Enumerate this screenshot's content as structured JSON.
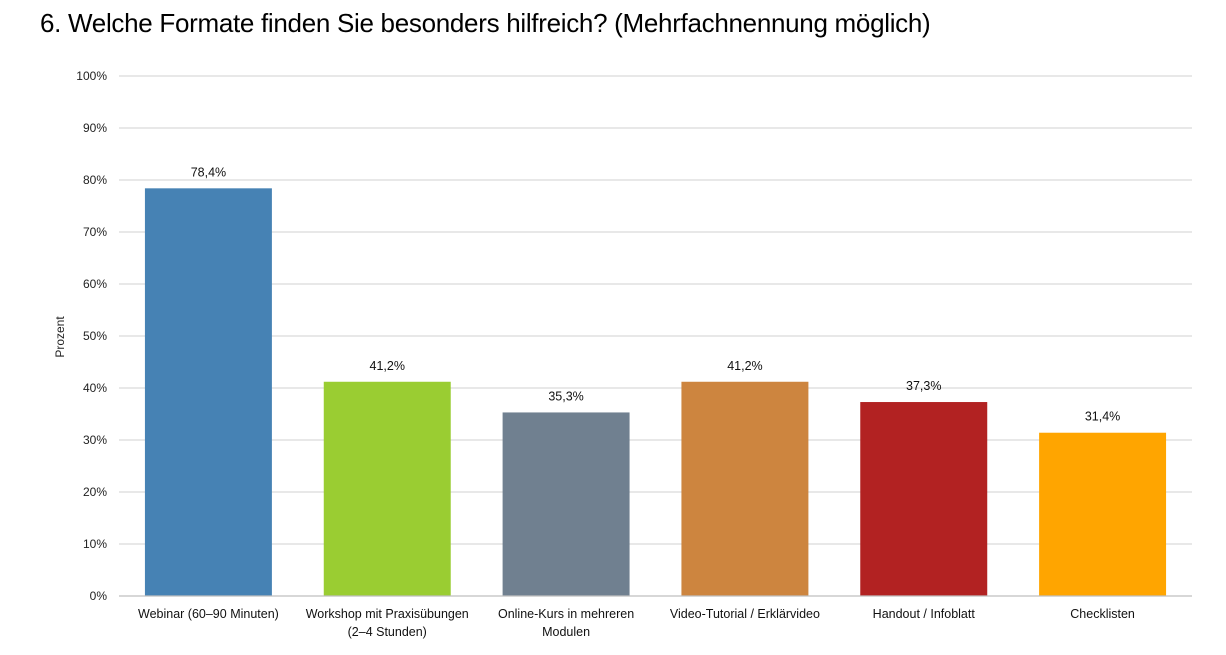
{
  "chart_data": {
    "type": "bar",
    "title": "6. Welche Formate finden Sie besonders hilfreich? (Mehrfachnennung möglich)",
    "xlabel": "",
    "ylabel": "Prozent",
    "ylim": [
      0,
      100
    ],
    "grid": true,
    "legend": "none",
    "yticks": [
      "0%",
      "10%",
      "20%",
      "30%",
      "40%",
      "50%",
      "60%",
      "70%",
      "80%",
      "90%",
      "100%"
    ],
    "categories": [
      [
        "Webinar (60–90 Minuten)"
      ],
      [
        "Workshop mit Praxisübungen",
        "(2–4 Stunden)"
      ],
      [
        "Online-Kurs in mehreren",
        "Modulen"
      ],
      [
        "Video-Tutorial / Erklärvideo"
      ],
      [
        "Handout / Infoblatt"
      ],
      [
        "Checklisten"
      ]
    ],
    "values": [
      78.4,
      41.2,
      35.3,
      41.2,
      37.3,
      31.4
    ],
    "data_labels": [
      "78,4%",
      "41,2%",
      "35,3%",
      "41,2%",
      "37,3%",
      "31,4%"
    ],
    "colors": [
      "#4682b4",
      "#9acd32",
      "#708090",
      "#cd853f",
      "#b22222",
      "#ffa500"
    ]
  }
}
